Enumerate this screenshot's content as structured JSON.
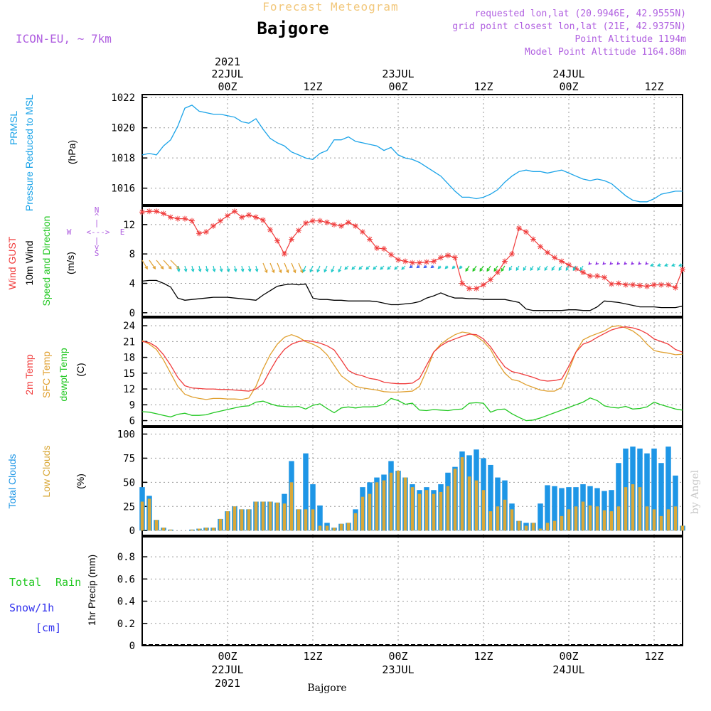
{
  "header": {
    "title": "Forecast Meteogram",
    "location": "Bajgore",
    "model": "ICON-EU, ~ 7km",
    "requested": "requested lon,lat (20.9946E, 42.9555N)",
    "gridpoint": "grid point closest lon,lat (21E, 42.9375N)",
    "point_alt": "Point Altitude 1194m",
    "model_alt": "Model Point Altitude 1164.88m",
    "footer": "Bajgore",
    "watermark": "by Angel"
  },
  "time_axis": {
    "top_labels": [
      {
        "line1": "2021",
        "line2": "22JUL",
        "line3": "00Z",
        "t": 12
      },
      {
        "line1": "",
        "line2": "",
        "line3": "12Z",
        "t": 24
      },
      {
        "line1": "",
        "line2": "23JUL",
        "line3": "00Z",
        "t": 36
      },
      {
        "line1": "",
        "line2": "",
        "line3": "12Z",
        "t": 48
      },
      {
        "line1": "",
        "line2": "24JUL",
        "line3": "00Z",
        "t": 60
      },
      {
        "line1": "",
        "line2": "",
        "line3": "12Z",
        "t": 72
      }
    ],
    "bottom_labels": [
      {
        "line1": "00Z",
        "line2": "22JUL",
        "line3": "2021",
        "t": 12
      },
      {
        "line1": "12Z",
        "line2": "",
        "line3": "",
        "t": 24
      },
      {
        "line1": "00Z",
        "line2": "23JUL",
        "line3": "",
        "t": 36
      },
      {
        "line1": "12Z",
        "line2": "",
        "line3": "",
        "t": 48
      },
      {
        "line1": "00Z",
        "line2": "24JUL",
        "line3": "",
        "t": 60
      },
      {
        "line1": "12Z",
        "line2": "",
        "line3": "",
        "t": 72
      }
    ]
  },
  "panels": {
    "pressure": {
      "label1": "PRMSL",
      "label2": "Pressure Reduced to MSL",
      "unit": "(hPa)",
      "ticks": [
        "1022",
        "1020",
        "1018",
        "1016"
      ]
    },
    "wind": {
      "label_gust": "Wind GUST",
      "label_wind": "10m Wind",
      "label_dir": "Speed and Direction",
      "unit": "(m/s)",
      "ticks": [
        "12",
        "8",
        "4",
        "0"
      ],
      "compass_n": "N",
      "compass_s": "S",
      "compass_w": "W",
      "compass_e": "E",
      "compass_arrow": "<--->"
    },
    "temp": {
      "label1": "2m Temp",
      "label2": "SFC Temp",
      "label3": "dewpt Temp",
      "unit": "(C)",
      "ticks": [
        "24",
        "21",
        "18",
        "15",
        "12",
        "9",
        "6"
      ]
    },
    "clouds": {
      "label1": "Total Clouds",
      "label2": "Low Clouds",
      "unit": "(%)",
      "ticks": [
        "100",
        "75",
        "50",
        "25",
        "0"
      ]
    },
    "precip": {
      "label1": "Total",
      "label2": "Rain",
      "label3": "Snow/1h",
      "label4": "[cm]",
      "unit": "1hr Precip (mm)",
      "ticks": [
        "0.8",
        "0.6",
        "0.4",
        "0.2",
        "0"
      ]
    }
  },
  "colors": {
    "pressure": "#1aa3e8",
    "gust": "#f03c3c",
    "wind": "#000000",
    "sfc": "#e0a030",
    "dew": "#22c822",
    "total_cloud": "#1e96e6",
    "low_cloud": "#d9a838",
    "title_orange": "#f2c77a",
    "purple": "#b060e0",
    "rain_green": "#22c822",
    "snow_blue": "#3333ee"
  },
  "chart_data": [
    {
      "type": "line",
      "title": "PRMSL Pressure Reduced to MSL",
      "ylabel": "hPa",
      "ylim": [
        1014.9,
        1022.2
      ],
      "x_hours": [
        0,
        1,
        2,
        3,
        4,
        5,
        6,
        7,
        8,
        9,
        10,
        11,
        12,
        13,
        14,
        15,
        16,
        17,
        18,
        19,
        20,
        21,
        22,
        23,
        24,
        25,
        26,
        27,
        28,
        29,
        30,
        31,
        32,
        33,
        34,
        35,
        36,
        37,
        38,
        39,
        40,
        41,
        42,
        43,
        44,
        45,
        46,
        47,
        48,
        49,
        50,
        51,
        52,
        53,
        54,
        55,
        56,
        57,
        58,
        59,
        60,
        61,
        62,
        63,
        64,
        65,
        66,
        67,
        68,
        69,
        70,
        71,
        72,
        73,
        74,
        75,
        76
      ],
      "series": [
        {
          "name": "PRMSL",
          "values": [
            1018.2,
            1018.3,
            1018.2,
            1018.8,
            1019.2,
            1020.1,
            1021.3,
            1021.5,
            1021.1,
            1021.0,
            1020.9,
            1020.9,
            1020.8,
            1020.7,
            1020.4,
            1020.3,
            1020.6,
            1019.9,
            1019.3,
            1019.0,
            1018.8,
            1018.4,
            1018.2,
            1018.0,
            1017.9,
            1018.3,
            1018.5,
            1019.2,
            1019.2,
            1019.4,
            1019.1,
            1019.0,
            1018.9,
            1018.8,
            1018.5,
            1018.7,
            1018.2,
            1018.0,
            1017.9,
            1017.7,
            1017.4,
            1017.1,
            1016.8,
            1016.3,
            1015.8,
            1015.4,
            1015.4,
            1015.3,
            1015.4,
            1015.6,
            1015.9,
            1016.4,
            1016.8,
            1017.1,
            1017.2,
            1017.1,
            1017.1,
            1017.0,
            1017.1,
            1017.2,
            1017.0,
            1016.8,
            1016.6,
            1016.5,
            1016.6,
            1016.5,
            1016.3,
            1015.9,
            1015.5,
            1015.2,
            1015.1,
            1015.1,
            1015.3,
            1015.6,
            1015.7,
            1015.8,
            1015.8
          ]
        }
      ]
    },
    {
      "type": "line",
      "title": "Wind GUST / 10m Wind Speed and Direction",
      "ylabel": "m/s",
      "ylim": [
        -0.5,
        14.5
      ],
      "x_hours": [
        0,
        1,
        2,
        3,
        4,
        5,
        6,
        7,
        8,
        9,
        10,
        11,
        12,
        13,
        14,
        15,
        16,
        17,
        18,
        19,
        20,
        21,
        22,
        23,
        24,
        25,
        26,
        27,
        28,
        29,
        30,
        31,
        32,
        33,
        34,
        35,
        36,
        37,
        38,
        39,
        40,
        41,
        42,
        43,
        44,
        45,
        46,
        47,
        48,
        49,
        50,
        51,
        52,
        53,
        54,
        55,
        56,
        57,
        58,
        59,
        60,
        61,
        62,
        63,
        64,
        65,
        66,
        67,
        68,
        69,
        70,
        71,
        72,
        73,
        74,
        75,
        76
      ],
      "series": [
        {
          "name": "Wind GUST",
          "values": [
            13.7,
            13.8,
            13.8,
            13.5,
            13.0,
            12.8,
            12.8,
            12.5,
            10.8,
            11.0,
            11.8,
            12.5,
            13.2,
            13.8,
            13.0,
            13.3,
            13.0,
            12.6,
            11.3,
            9.8,
            8.0,
            10.0,
            11.2,
            12.2,
            12.5,
            12.5,
            12.3,
            12.0,
            11.8,
            12.3,
            11.8,
            11.0,
            10.0,
            8.8,
            8.7,
            7.9,
            7.2,
            7.0,
            6.8,
            6.8,
            6.9,
            7.0,
            7.5,
            7.8,
            7.5,
            4.0,
            3.3,
            3.3,
            3.8,
            4.5,
            5.5,
            7.0,
            8.0,
            11.5,
            11.0,
            10.0,
            9.0,
            8.2,
            7.5,
            7.0,
            6.5,
            6.0,
            5.5,
            5.0,
            5.0,
            4.8,
            3.9,
            4.0,
            3.8,
            3.8,
            3.7,
            3.6,
            3.8,
            3.8,
            3.8,
            3.4,
            5.9
          ]
        },
        {
          "name": "10m Wind",
          "values": [
            4.3,
            4.4,
            4.4,
            4.0,
            3.5,
            2.0,
            1.7,
            1.8,
            1.9,
            2.0,
            2.1,
            2.1,
            2.1,
            2.0,
            1.9,
            1.8,
            1.7,
            2.4,
            3.0,
            3.6,
            3.8,
            3.9,
            3.8,
            3.9,
            2.0,
            1.8,
            1.8,
            1.7,
            1.7,
            1.6,
            1.6,
            1.6,
            1.6,
            1.5,
            1.3,
            1.1,
            1.1,
            1.2,
            1.3,
            1.5,
            2.0,
            2.3,
            2.7,
            2.3,
            2.0,
            2.0,
            1.9,
            1.9,
            1.8,
            1.8,
            1.8,
            1.8,
            1.6,
            1.4,
            0.5,
            0.3,
            0.3,
            0.3,
            0.3,
            0.3,
            0.4,
            0.4,
            0.3,
            0.3,
            0.8,
            1.6,
            1.5,
            1.4,
            1.2,
            1.0,
            0.8,
            0.8,
            0.8,
            0.7,
            0.7,
            0.7,
            0.9
          ]
        }
      ]
    },
    {
      "type": "line",
      "title": "2m Temp / SFC Temp / dewpt Temp",
      "ylabel": "C",
      "ylim": [
        5,
        25.5
      ],
      "x_hours": [
        0,
        1,
        2,
        3,
        4,
        5,
        6,
        7,
        8,
        9,
        10,
        11,
        12,
        13,
        14,
        15,
        16,
        17,
        18,
        19,
        20,
        21,
        22,
        23,
        24,
        25,
        26,
        27,
        28,
        29,
        30,
        31,
        32,
        33,
        34,
        35,
        36,
        37,
        38,
        39,
        40,
        41,
        42,
        43,
        44,
        45,
        46,
        47,
        48,
        49,
        50,
        51,
        52,
        53,
        54,
        55,
        56,
        57,
        58,
        59,
        60,
        61,
        62,
        63,
        64,
        65,
        66,
        67,
        68,
        69,
        70,
        71,
        72,
        73,
        74,
        75,
        76
      ],
      "series": [
        {
          "name": "2m Temp",
          "values": [
            21.0,
            20.8,
            20.0,
            18.5,
            16.5,
            14.2,
            12.6,
            12.2,
            12.1,
            12.0,
            12.0,
            11.9,
            11.9,
            11.8,
            11.7,
            11.6,
            12.0,
            13.0,
            15.5,
            17.8,
            19.5,
            20.5,
            21.0,
            21.2,
            21.0,
            20.7,
            20.2,
            19.4,
            17.5,
            15.5,
            14.8,
            14.5,
            14.0,
            13.8,
            13.3,
            13.1,
            13.0,
            13.0,
            13.1,
            14.0,
            16.5,
            19.0,
            20.2,
            21.0,
            21.5,
            22.0,
            22.4,
            22.3,
            21.5,
            20.0,
            18.0,
            16.2,
            15.3,
            15.0,
            14.6,
            14.2,
            13.7,
            13.5,
            13.6,
            13.9,
            16.3,
            19.0,
            20.5,
            21.0,
            21.8,
            22.5,
            23.2,
            23.6,
            23.8,
            23.6,
            23.2,
            22.5,
            21.5,
            21.0,
            20.5,
            19.5,
            19.0
          ]
        },
        {
          "name": "SFC Temp",
          "values": [
            21.2,
            20.5,
            19.5,
            17.5,
            15.0,
            12.5,
            11.0,
            10.5,
            10.2,
            10.0,
            10.2,
            10.2,
            10.1,
            10.1,
            10.0,
            10.3,
            12.5,
            15.8,
            18.5,
            20.5,
            21.8,
            22.3,
            21.8,
            21.0,
            20.5,
            19.8,
            18.5,
            16.5,
            14.5,
            13.5,
            12.5,
            12.2,
            12.0,
            11.8,
            11.5,
            11.4,
            11.4,
            11.5,
            11.6,
            12.5,
            15.5,
            19.0,
            20.5,
            21.5,
            22.3,
            22.8,
            22.6,
            22.0,
            21.0,
            19.5,
            17.0,
            15.0,
            13.8,
            13.5,
            12.8,
            12.3,
            11.8,
            11.6,
            11.6,
            12.3,
            15.5,
            19.0,
            21.3,
            22.0,
            22.5,
            23.0,
            23.8,
            24.0,
            23.6,
            23.0,
            22.0,
            20.5,
            19.3,
            19.0,
            18.8,
            18.5,
            18.6
          ]
        },
        {
          "name": "dewpt Temp",
          "values": [
            7.7,
            7.6,
            7.3,
            7.0,
            6.7,
            7.2,
            7.4,
            7.0,
            7.0,
            7.1,
            7.5,
            7.8,
            8.1,
            8.4,
            8.7,
            8.8,
            9.5,
            9.7,
            9.2,
            8.8,
            8.7,
            8.6,
            8.7,
            8.2,
            8.9,
            9.2,
            8.3,
            7.5,
            8.4,
            8.6,
            8.4,
            8.6,
            8.6,
            8.7,
            9.1,
            10.2,
            9.8,
            9.1,
            9.3,
            8.0,
            7.9,
            8.1,
            8.0,
            7.9,
            8.1,
            8.2,
            9.3,
            9.4,
            9.3,
            7.6,
            8.1,
            8.2,
            7.3,
            6.6,
            6.0,
            6.1,
            6.5,
            7.0,
            7.5,
            8.0,
            8.5,
            9.0,
            9.5,
            10.3,
            9.8,
            8.8,
            8.5,
            8.4,
            8.7,
            8.2,
            8.3,
            8.6,
            9.5,
            9.0,
            8.6,
            8.2,
            8.0
          ]
        }
      ]
    },
    {
      "type": "bar",
      "title": "Total Clouds / Low Clouds",
      "ylabel": "%",
      "ylim": [
        -5,
        107
      ],
      "x_hours": [
        0,
        1,
        2,
        3,
        4,
        5,
        6,
        7,
        8,
        9,
        10,
        11,
        12,
        13,
        14,
        15,
        16,
        17,
        18,
        19,
        20,
        21,
        22,
        23,
        24,
        25,
        26,
        27,
        28,
        29,
        30,
        31,
        32,
        33,
        34,
        35,
        36,
        37,
        38,
        39,
        40,
        41,
        42,
        43,
        44,
        45,
        46,
        47,
        48,
        49,
        50,
        51,
        52,
        53,
        54,
        55,
        56,
        57,
        58,
        59,
        60,
        61,
        62,
        63,
        64,
        65,
        66,
        67,
        68,
        69,
        70,
        71,
        72,
        73,
        74,
        75,
        76
      ],
      "series": [
        {
          "name": "Total Clouds",
          "values": [
            45,
            36,
            11,
            3,
            1,
            0,
            0,
            1,
            2,
            3,
            3,
            12,
            20,
            25,
            22,
            22,
            30,
            30,
            30,
            29,
            38,
            72,
            22,
            80,
            48,
            26,
            8,
            3,
            7,
            8,
            22,
            45,
            50,
            55,
            58,
            72,
            62,
            55,
            48,
            42,
            45,
            42,
            48,
            60,
            66,
            82,
            78,
            84,
            75,
            68,
            55,
            52,
            28,
            10,
            8,
            8,
            28,
            47,
            46,
            44,
            45,
            45,
            48,
            46,
            44,
            41,
            42,
            70,
            85,
            87,
            85,
            80,
            85,
            70,
            87,
            57,
            5
          ]
        },
        {
          "name": "Low Clouds",
          "values": [
            30,
            33,
            11,
            3,
            1,
            0,
            0,
            1,
            2,
            3,
            3,
            12,
            20,
            25,
            22,
            22,
            30,
            30,
            30,
            29,
            28,
            50,
            22,
            22,
            22,
            5,
            5,
            3,
            7,
            8,
            18,
            35,
            38,
            50,
            52,
            60,
            62,
            55,
            45,
            38,
            42,
            38,
            40,
            46,
            64,
            76,
            56,
            52,
            42,
            20,
            25,
            32,
            22,
            10,
            5,
            8,
            2,
            8,
            10,
            15,
            22,
            25,
            30,
            26,
            25,
            21,
            20,
            25,
            45,
            48,
            45,
            25,
            22,
            15,
            22,
            25,
            5
          ]
        }
      ]
    },
    {
      "type": "line",
      "title": "1hr Precip",
      "ylabel": "1hr Precip (mm)",
      "ylim": [
        0,
        0.98
      ],
      "x_hours": [
        0,
        12,
        24,
        36,
        48,
        60,
        72,
        76
      ],
      "series": [
        {
          "name": "Total Rain",
          "values": [
            0,
            0,
            0,
            0,
            0,
            0,
            0,
            0
          ]
        },
        {
          "name": "Snow/1h [cm]",
          "values": [
            0,
            0,
            0,
            0,
            0,
            0,
            0,
            0
          ]
        }
      ]
    }
  ]
}
